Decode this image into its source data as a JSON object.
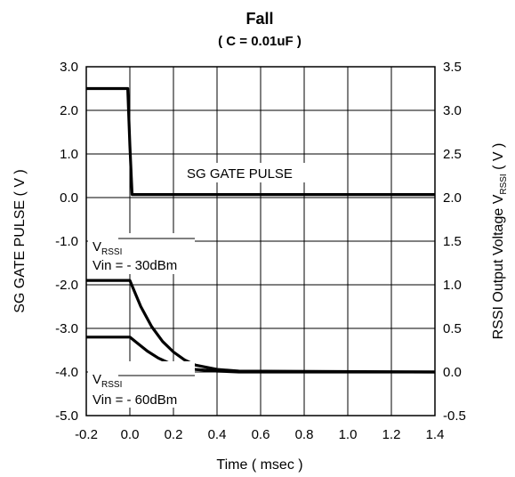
{
  "chart_data": {
    "type": "line",
    "title": "Fall",
    "subtitle": "( C = 0.01uF )",
    "xlabel": "Time ( msec )",
    "ylabel_left": "SG GATE PULSE ( V )",
    "ylabel_right": {
      "main": "RSSI Output Voltage V",
      "sub": "RSSI",
      "suffix": " ( V )"
    },
    "xlim": [
      -0.2,
      1.4
    ],
    "ylim_left": [
      -5.0,
      3.0
    ],
    "ylim_right": [
      -0.5,
      3.5
    ],
    "x_ticks": [
      "-0.2",
      "0.0",
      "0.2",
      "0.4",
      "0.6",
      "0.8",
      "1.0",
      "1.2",
      "1.4"
    ],
    "y_ticks_left": [
      "-5.0",
      "-4.0",
      "-3.0",
      "-2.0",
      "-1.0",
      "0.0",
      "1.0",
      "2.0",
      "3.0"
    ],
    "y_ticks_right": [
      "-0.5",
      "0.0",
      "0.5",
      "1.0",
      "1.5",
      "2.0",
      "2.5",
      "3.0",
      "3.5"
    ],
    "grid": true,
    "series": [
      {
        "name": "SG GATE PULSE",
        "axis": "left",
        "x": [
          -0.2,
          -0.01,
          0.0,
          0.01,
          0.2,
          0.6,
          1.0,
          1.4
        ],
        "y": [
          2.5,
          2.5,
          1.2,
          0.07,
          0.07,
          0.07,
          0.07,
          0.07
        ]
      },
      {
        "axis": "right",
        "x": [
          -0.2,
          0.0,
          0.02,
          0.05,
          0.1,
          0.15,
          0.2,
          0.25,
          0.3,
          0.4,
          0.5,
          1.4
        ],
        "y": [
          1.05,
          1.05,
          0.93,
          0.75,
          0.52,
          0.35,
          0.23,
          0.14,
          0.08,
          0.03,
          0.01,
          0.0
        ]
      },
      {
        "axis": "right",
        "x": [
          -0.2,
          0.0,
          0.03,
          0.08,
          0.13,
          0.2,
          0.25,
          0.3,
          0.4,
          0.5,
          1.4
        ],
        "y": [
          0.4,
          0.4,
          0.34,
          0.24,
          0.16,
          0.08,
          0.05,
          0.03,
          0.01,
          0.0,
          0.0
        ]
      }
    ],
    "annotations": [
      {
        "text": "SG GATE PULSE"
      },
      {
        "text_main": "V",
        "text_sub": "RSSI",
        "text_line2": "Vin = - 30dBm"
      },
      {
        "text_main": "V",
        "text_sub": "RSSI",
        "text_line2": "Vin = - 60dBm"
      }
    ],
    "colors": {
      "line": "#000000",
      "grid": "#000000",
      "background": "#ffffff"
    }
  }
}
